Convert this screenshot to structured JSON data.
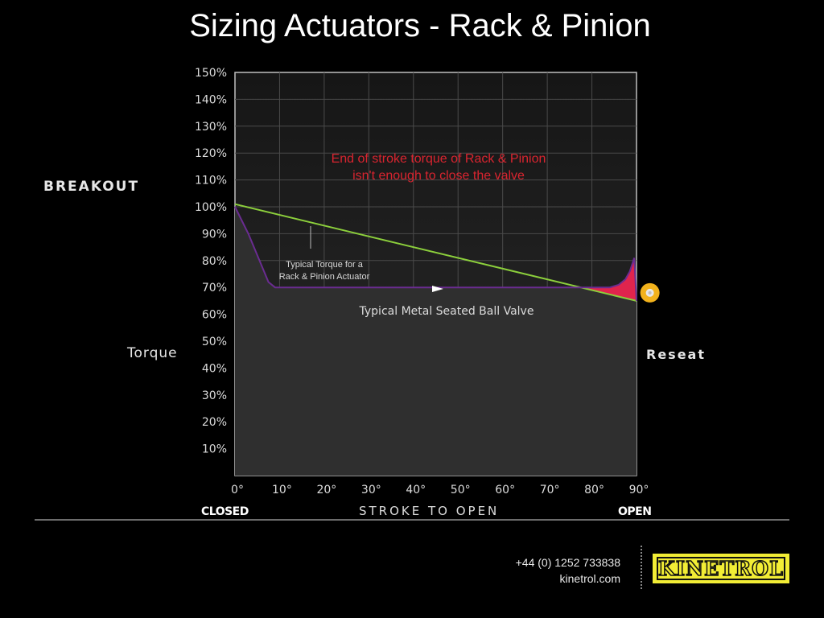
{
  "title": "Sizing Actuators - Rack & Pinion",
  "labels": {
    "breakout": "BREAKOUT",
    "torque": "Torque",
    "reseat": "Reseat",
    "closed": "CLOSED",
    "open": "OPEN",
    "xlabel": "STROKE TO OPEN",
    "callout_line1": "End of stroke torque of Rack & Pinion",
    "callout_line2": "isn't enough to close the valve",
    "actuator_line1": "Typical Torque for a",
    "actuator_line2": "Rack & Pinion Actuator",
    "valve": "Typical Metal Seated Ball Valve"
  },
  "contact": {
    "phone": "+44 (0) 1252 733838",
    "website": "kinetrol.com"
  },
  "logo": {
    "text": "KINETROL",
    "color": "#f2ed35"
  },
  "chart_data": {
    "type": "line",
    "xlim": [
      0,
      90
    ],
    "ylim": [
      0,
      150
    ],
    "x_ticks": [
      "0°",
      "10°",
      "20°",
      "30°",
      "40°",
      "50°",
      "60°",
      "70°",
      "80°",
      "90°"
    ],
    "y_ticks": [
      "10%",
      "20%",
      "30%",
      "40%",
      "50%",
      "60%",
      "70%",
      "80%",
      "90%",
      "100%",
      "110%",
      "120%",
      "130%",
      "140%",
      "150%"
    ],
    "grid": true,
    "series": [
      {
        "name": "Typical Torque for a Rack & Pinion Actuator",
        "color": "#8ccf3c",
        "x": [
          0,
          90
        ],
        "y": [
          101,
          65
        ]
      },
      {
        "name": "Typical Metal Seated Ball Valve",
        "color": "#6a2c91",
        "x": [
          0,
          3,
          6,
          7.5,
          9,
          80,
          84,
          86,
          87.5,
          88.5,
          89.5,
          90
        ],
        "y": [
          100,
          90,
          78,
          72,
          70,
          70,
          70,
          71,
          73,
          76,
          81,
          65
        ]
      }
    ],
    "shortfall_region": {
      "color": "#e0244d",
      "x": [
        77,
        80,
        84,
        86,
        87.5,
        88.5,
        89.5,
        90
      ],
      "upper_y": [
        70,
        70,
        70,
        71,
        73,
        76,
        81,
        65
      ]
    },
    "reseat_marker": {
      "x": 93,
      "y": 68,
      "color": "#f2b21c"
    }
  }
}
